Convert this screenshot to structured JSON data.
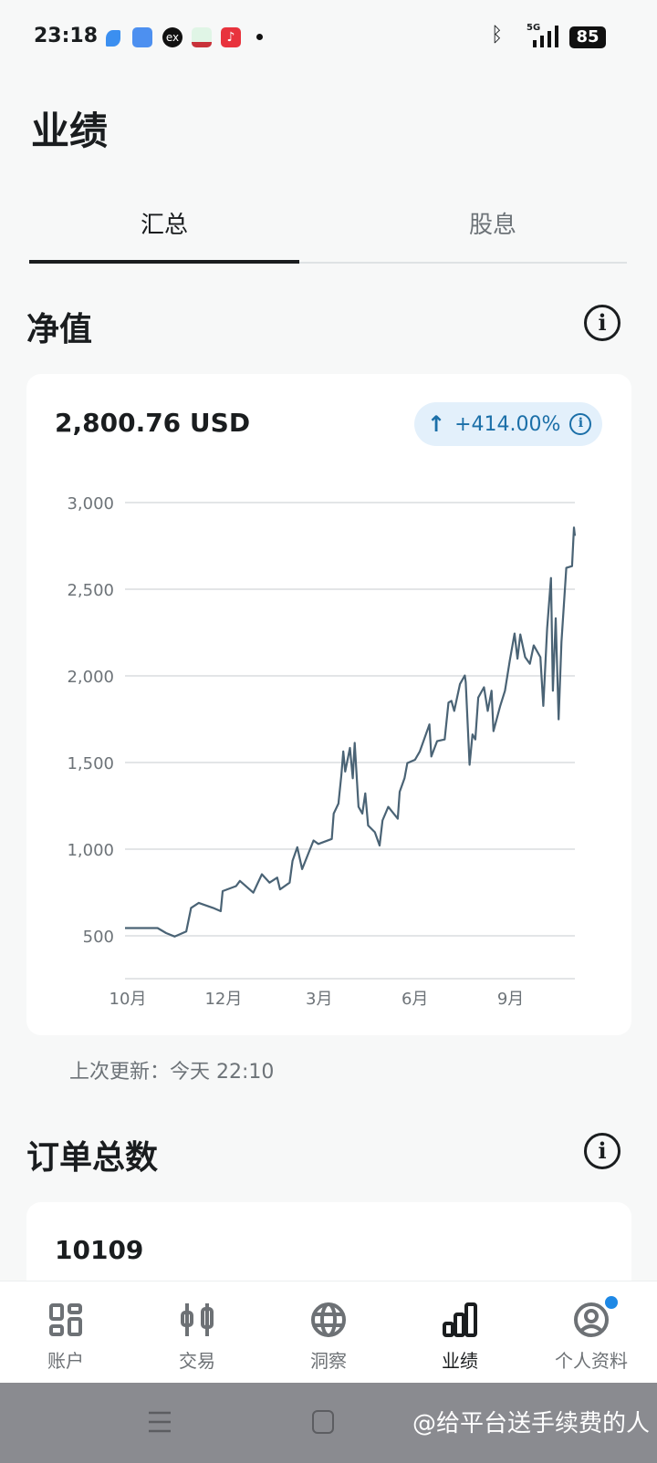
{
  "status": {
    "time": "23:18",
    "battery": "85",
    "network": "5G"
  },
  "page": {
    "title": "业绩"
  },
  "tabs": [
    {
      "label": "汇总",
      "active": true
    },
    {
      "label": "股息",
      "active": false
    }
  ],
  "net_value": {
    "heading": "净值",
    "value": "2,800.76 USD",
    "change": "+414.00%",
    "last_update": "上次更新：今天 22:10"
  },
  "orders": {
    "heading": "订单总数",
    "value": "10109"
  },
  "nav": [
    {
      "label": "账户",
      "icon": "grid-icon"
    },
    {
      "label": "交易",
      "icon": "candlestick-icon"
    },
    {
      "label": "洞察",
      "icon": "globe-icon"
    },
    {
      "label": "业绩",
      "icon": "bar-chart-icon",
      "active": true
    },
    {
      "label": "个人资料",
      "icon": "profile-icon",
      "badge": true
    }
  ],
  "watermark": "@给平台送手续费的人",
  "colors": {
    "line": "#4a6375",
    "badge_bg": "#e3f0fb",
    "badge_text": "#1b6fa8",
    "active": "#1a1d1f"
  },
  "chart_data": {
    "type": "line",
    "title": "",
    "xlabel": "",
    "ylabel": "",
    "ylim": [
      250,
      3000
    ],
    "yticks": [
      500,
      1000,
      1500,
      2000,
      2500,
      3000
    ],
    "ytick_labels": [
      "500",
      "1,000",
      "1,500",
      "2,000",
      "2,500",
      "3,000"
    ],
    "xlim": [
      0,
      4.7
    ],
    "xticks": [
      0,
      1,
      2,
      3,
      4
    ],
    "xtick_labels": [
      "10月",
      "12月",
      "3月",
      "6月",
      "9月"
    ],
    "grid": true,
    "series": [
      {
        "name": "净值",
        "points": [
          [
            0,
            545
          ],
          [
            0.34,
            545
          ],
          [
            0.43,
            516
          ],
          [
            0.52,
            496
          ],
          [
            0.64,
            525
          ],
          [
            0.69,
            661
          ],
          [
            0.77,
            690
          ],
          [
            0.92,
            661
          ],
          [
            1.0,
            642
          ],
          [
            1.02,
            758
          ],
          [
            1.16,
            787
          ],
          [
            1.2,
            817
          ],
          [
            1.34,
            749
          ],
          [
            1.43,
            855
          ],
          [
            1.51,
            807
          ],
          [
            1.59,
            836
          ],
          [
            1.62,
            768
          ],
          [
            1.72,
            807
          ],
          [
            1.75,
            933
          ],
          [
            1.8,
            1011
          ],
          [
            1.85,
            885
          ],
          [
            1.97,
            1050
          ],
          [
            2.02,
            1030
          ],
          [
            2.16,
            1059
          ],
          [
            2.18,
            1205
          ],
          [
            2.23,
            1263
          ],
          [
            2.26,
            1428
          ],
          [
            2.28,
            1564
          ],
          [
            2.3,
            1448
          ],
          [
            2.35,
            1584
          ],
          [
            2.38,
            1409
          ],
          [
            2.4,
            1613
          ],
          [
            2.44,
            1244
          ],
          [
            2.48,
            1205
          ],
          [
            2.51,
            1322
          ],
          [
            2.54,
            1137
          ],
          [
            2.61,
            1098
          ],
          [
            2.66,
            1021
          ],
          [
            2.69,
            1166
          ],
          [
            2.75,
            1244
          ],
          [
            2.85,
            1176
          ],
          [
            2.87,
            1331
          ],
          [
            2.92,
            1409
          ],
          [
            2.95,
            1497
          ],
          [
            3.03,
            1516
          ],
          [
            3.08,
            1564
          ],
          [
            3.18,
            1720
          ],
          [
            3.2,
            1535
          ],
          [
            3.26,
            1623
          ],
          [
            3.34,
            1633
          ],
          [
            3.38,
            1846
          ],
          [
            3.41,
            1856
          ],
          [
            3.44,
            1798
          ],
          [
            3.5,
            1953
          ],
          [
            3.55,
            2002
          ],
          [
            3.56,
            1963
          ],
          [
            3.6,
            1487
          ],
          [
            3.63,
            1662
          ],
          [
            3.66,
            1633
          ],
          [
            3.69,
            1875
          ],
          [
            3.75,
            1934
          ],
          [
            3.79,
            1798
          ],
          [
            3.83,
            1914
          ],
          [
            3.85,
            1681
          ],
          [
            3.92,
            1827
          ],
          [
            3.97,
            1914
          ],
          [
            4.02,
            2089
          ],
          [
            4.07,
            2244
          ],
          [
            4.1,
            2099
          ],
          [
            4.13,
            2239
          ],
          [
            4.18,
            2108
          ],
          [
            4.23,
            2070
          ],
          [
            4.27,
            2176
          ],
          [
            4.34,
            2108
          ],
          [
            4.37,
            1827
          ],
          [
            4.41,
            2273
          ],
          [
            4.45,
            2565
          ],
          [
            4.47,
            1914
          ],
          [
            4.5,
            2332
          ],
          [
            4.53,
            1749
          ],
          [
            4.56,
            2196
          ],
          [
            4.61,
            2623
          ],
          [
            4.67,
            2633
          ],
          [
            4.69,
            2856
          ],
          [
            4.7,
            2808
          ]
        ]
      }
    ]
  }
}
